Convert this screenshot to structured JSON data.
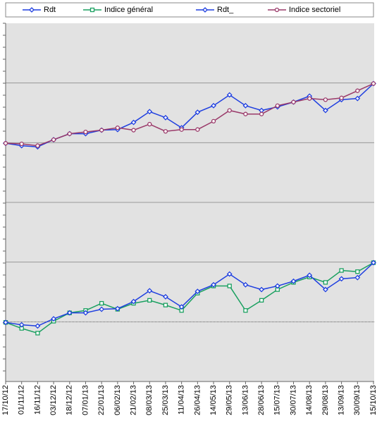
{
  "chart_data": {
    "type": "line",
    "categories": [
      "17/10/12",
      "01/11/12",
      "16/11/12",
      "03/12/12",
      "18/12/12",
      "07/01/13",
      "22/01/13",
      "06/02/13",
      "21/02/13",
      "08/03/13",
      "25/03/13",
      "11/04/13",
      "26/04/13",
      "14/05/13",
      "29/05/13",
      "13/06/13",
      "28/06/13",
      "15/07/13",
      "30/07/13",
      "14/08/13",
      "29/08/13",
      "13/09/13",
      "30/09/13",
      "15/10/13"
    ],
    "series": [
      {
        "name": "Rdt",
        "color": "#1f3fe0",
        "marker": "diamond",
        "values": [
          3.99,
          3.95,
          3.93,
          4.05,
          4.15,
          4.15,
          4.21,
          4.22,
          4.34,
          4.52,
          4.42,
          4.25,
          4.51,
          4.62,
          4.8,
          4.62,
          4.54,
          4.6,
          4.68,
          4.78,
          4.54,
          4.72,
          4.74,
          4.99
        ]
      },
      {
        "name": "Indice général",
        "color": "#1aa060",
        "marker": "square",
        "values": [
          0.99,
          0.89,
          0.81,
          1.01,
          1.15,
          1.19,
          1.31,
          1.21,
          1.31,
          1.36,
          1.28,
          1.19,
          1.48,
          1.6,
          1.6,
          1.19,
          1.36,
          1.54,
          1.66,
          1.75,
          1.66,
          1.86,
          1.84,
          1.99
        ]
      },
      {
        "name": "Rdt_",
        "color": "#1f3fe0",
        "marker": "diamond",
        "values": [
          0.99,
          0.95,
          0.93,
          1.05,
          1.15,
          1.15,
          1.21,
          1.22,
          1.34,
          1.52,
          1.42,
          1.25,
          1.51,
          1.62,
          1.8,
          1.62,
          1.54,
          1.6,
          1.68,
          1.78,
          1.54,
          1.72,
          1.74,
          1.99
        ]
      },
      {
        "name": "Indice sectoriel",
        "color": "#9a3a6a",
        "marker": "circle",
        "values": [
          3.99,
          3.98,
          3.95,
          4.05,
          4.15,
          4.18,
          4.21,
          4.25,
          4.21,
          4.31,
          4.19,
          4.22,
          4.22,
          4.36,
          4.54,
          4.48,
          4.48,
          4.62,
          4.68,
          4.74,
          4.72,
          4.75,
          4.87,
          4.99
        ]
      }
    ],
    "ylim": [
      0,
      6
    ],
    "yticks": [
      1,
      2,
      3,
      4,
      5
    ],
    "grid": true
  }
}
